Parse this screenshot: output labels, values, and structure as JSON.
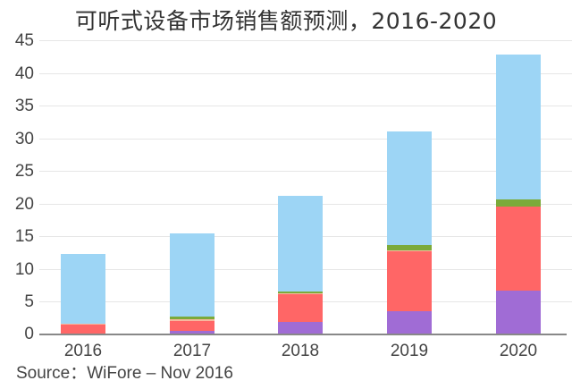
{
  "chart_data": {
    "type": "bar",
    "stacked": true,
    "title": "可听式设备市场销售额预测，2016-2020",
    "xlabel": "",
    "ylabel": "",
    "ylim": [
      0,
      45
    ],
    "yticks": [
      0,
      5,
      10,
      15,
      20,
      25,
      30,
      35,
      40,
      45
    ],
    "grid": true,
    "legend": "none",
    "categories": [
      "2016",
      "2017",
      "2018",
      "2019",
      "2020"
    ],
    "series": [
      {
        "name": "purple",
        "color": "#A06CD5",
        "values": [
          0.0,
          0.5,
          1.9,
          3.5,
          6.7
        ]
      },
      {
        "name": "red",
        "color": "#FF6666",
        "values": [
          1.5,
          1.5,
          4.2,
          9.2,
          12.8
        ]
      },
      {
        "name": "peach",
        "color": "#F7B89E",
        "values": [
          0.2,
          0.3,
          0.2,
          0.2,
          0.0
        ]
      },
      {
        "name": "green",
        "color": "#7BAA3A",
        "values": [
          0.0,
          0.4,
          0.3,
          0.8,
          1.2
        ]
      },
      {
        "name": "blue",
        "color": "#9DD5F5",
        "values": [
          10.6,
          12.7,
          14.6,
          17.3,
          22.1
        ]
      }
    ],
    "totals": [
      12.3,
      15.4,
      21.2,
      31.0,
      42.8
    ],
    "source": "Source：WiFore – Nov 2016"
  },
  "header": {
    "title": "可听式设备市场销售额预测，2016-2020"
  },
  "footer": {
    "source": "Source：WiFore – Nov 2016"
  },
  "axis": {
    "yticks": [
      "45",
      "40",
      "35",
      "30",
      "25",
      "20",
      "15",
      "10",
      "5",
      "0"
    ],
    "xticks": [
      "2016",
      "2017",
      "2018",
      "2019",
      "2020"
    ]
  }
}
